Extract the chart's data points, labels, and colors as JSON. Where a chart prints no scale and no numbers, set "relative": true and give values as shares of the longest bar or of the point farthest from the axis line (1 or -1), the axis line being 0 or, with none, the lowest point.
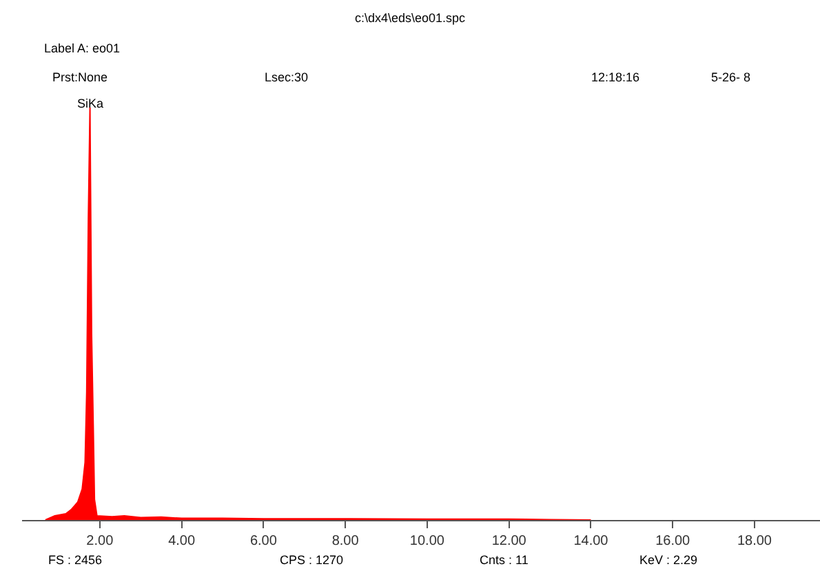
{
  "chart_data": {
    "type": "area",
    "title": "c:\\dx4\\eds\\eo01.spc",
    "relative": true,
    "x": [
      0.67,
      0.9,
      1.17,
      1.3,
      1.46,
      1.57,
      1.64,
      1.68,
      1.72,
      1.76,
      1.8,
      1.84,
      1.87,
      1.93,
      2.3,
      2.6,
      3.0,
      3.5,
      4.0,
      5.0,
      6.0,
      8.0,
      10.0,
      12.0,
      13.0,
      14.0
    ],
    "series": [
      {
        "color": "#ff0000",
        "values": [
          0.0,
          0.01,
          0.015,
          0.025,
          0.043,
          0.075,
          0.14,
          0.31,
          0.73,
          1.0,
          0.45,
          0.23,
          0.05,
          0.01,
          0.008,
          0.01,
          0.006,
          0.007,
          0.004,
          0.004,
          0.003,
          0.003,
          0.002,
          0.002,
          0.001,
          0.0
        ]
      }
    ],
    "xlim": [
      0.1,
      19.6
    ],
    "xticks": [
      {
        "value": 2,
        "label": "2.00"
      },
      {
        "value": 4,
        "label": "4.00"
      },
      {
        "value": 6,
        "label": "6.00"
      },
      {
        "value": 8,
        "label": "8.00"
      },
      {
        "value": 10,
        "label": "10.00"
      },
      {
        "value": 12,
        "label": "12.00"
      },
      {
        "value": 14,
        "label": "14.00"
      },
      {
        "value": 16,
        "label": "16.00"
      },
      {
        "value": 18,
        "label": "18.00"
      }
    ],
    "annotations": [
      {
        "text": "SiKa",
        "x": 1.76,
        "y": 1.0
      },
      "Label A: eo01",
      "Prst:None",
      "Lsec:30",
      "12:18:16",
      "5-26- 8",
      "FS : 2456",
      "CPS : 1270",
      "Cnts : 11",
      "KeV : 2.29"
    ]
  }
}
